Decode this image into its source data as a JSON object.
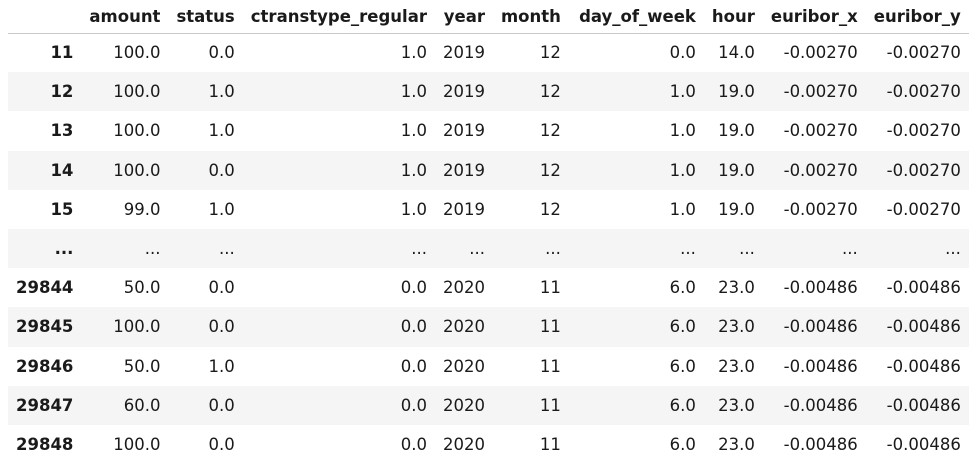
{
  "dataframe": {
    "columns": [
      "amount",
      "status",
      "ctranstype_regular",
      "year",
      "month",
      "day_of_week",
      "hour",
      "euribor_x",
      "euribor_y"
    ],
    "rows": [
      {
        "index": "11",
        "cells": [
          "100.0",
          "0.0",
          "1.0",
          "2019",
          "12",
          "0.0",
          "14.0",
          "-0.00270",
          "-0.00270"
        ]
      },
      {
        "index": "12",
        "cells": [
          "100.0",
          "1.0",
          "1.0",
          "2019",
          "12",
          "1.0",
          "19.0",
          "-0.00270",
          "-0.00270"
        ]
      },
      {
        "index": "13",
        "cells": [
          "100.0",
          "1.0",
          "1.0",
          "2019",
          "12",
          "1.0",
          "19.0",
          "-0.00270",
          "-0.00270"
        ]
      },
      {
        "index": "14",
        "cells": [
          "100.0",
          "0.0",
          "1.0",
          "2019",
          "12",
          "1.0",
          "19.0",
          "-0.00270",
          "-0.00270"
        ]
      },
      {
        "index": "15",
        "cells": [
          "99.0",
          "1.0",
          "1.0",
          "2019",
          "12",
          "1.0",
          "19.0",
          "-0.00270",
          "-0.00270"
        ]
      },
      {
        "index": "...",
        "cells": [
          "...",
          "...",
          "...",
          "...",
          "...",
          "...",
          "...",
          "...",
          "..."
        ]
      },
      {
        "index": "29844",
        "cells": [
          "50.0",
          "0.0",
          "0.0",
          "2020",
          "11",
          "6.0",
          "23.0",
          "-0.00486",
          "-0.00486"
        ]
      },
      {
        "index": "29845",
        "cells": [
          "100.0",
          "0.0",
          "0.0",
          "2020",
          "11",
          "6.0",
          "23.0",
          "-0.00486",
          "-0.00486"
        ]
      },
      {
        "index": "29846",
        "cells": [
          "50.0",
          "1.0",
          "0.0",
          "2020",
          "11",
          "6.0",
          "23.0",
          "-0.00486",
          "-0.00486"
        ]
      },
      {
        "index": "29847",
        "cells": [
          "60.0",
          "0.0",
          "0.0",
          "2020",
          "11",
          "6.0",
          "23.0",
          "-0.00486",
          "-0.00486"
        ]
      },
      {
        "index": "29848",
        "cells": [
          "100.0",
          "0.0",
          "0.0",
          "2020",
          "11",
          "6.0",
          "23.0",
          "-0.00486",
          "-0.00486"
        ]
      }
    ]
  }
}
